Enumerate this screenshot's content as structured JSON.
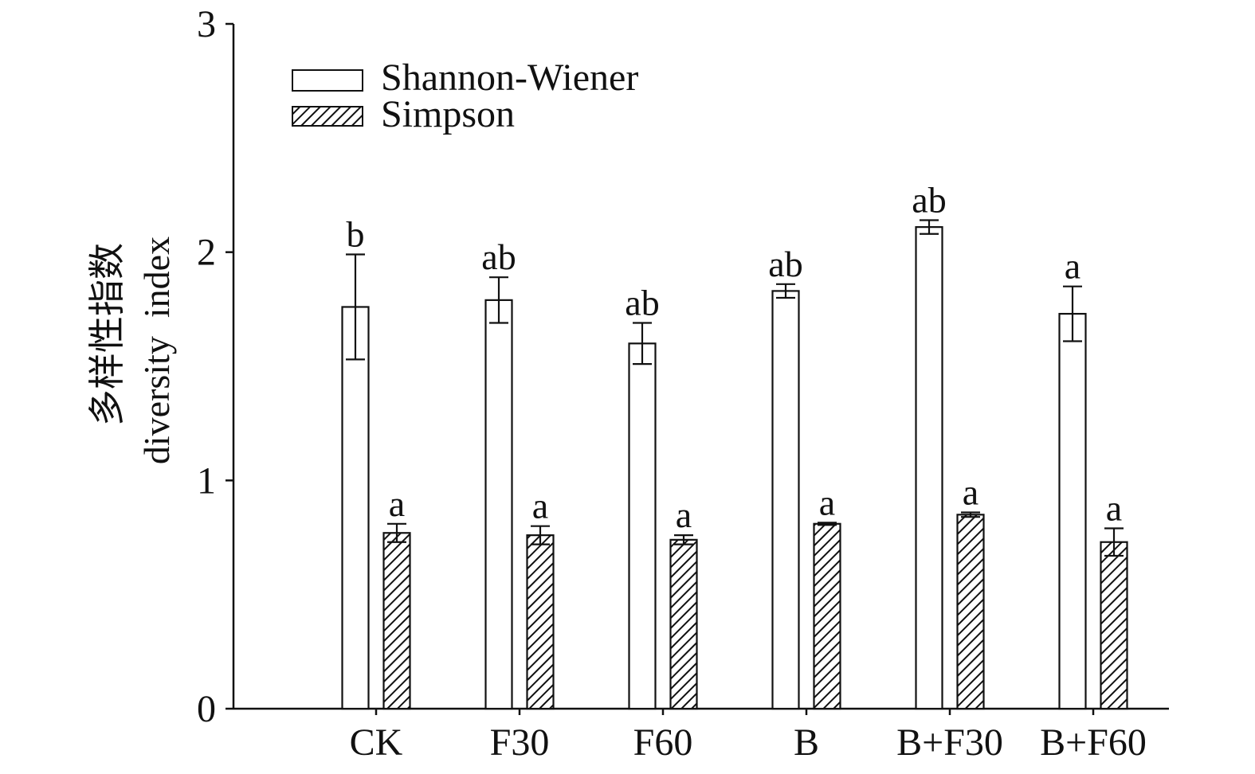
{
  "chart_data": {
    "type": "bar",
    "categories": [
      "CK",
      "F30",
      "F60",
      "B",
      "B+F30",
      "B+F60"
    ],
    "ylabel_cn": "多样性指数",
    "ylabel_en": "diversity  index",
    "ylim": [
      0,
      3
    ],
    "yticks": [
      0,
      1,
      2,
      3
    ],
    "grid": false,
    "legend_position": "top-left",
    "series": [
      {
        "name": "Shannon-Wiener",
        "pattern": "none",
        "values": [
          1.76,
          1.79,
          1.6,
          1.83,
          2.11,
          1.73
        ],
        "errors": [
          0.23,
          0.1,
          0.09,
          0.03,
          0.03,
          0.12
        ],
        "labels": [
          "b",
          "ab",
          "ab",
          "ab",
          "ab",
          "a"
        ]
      },
      {
        "name": "Simpson",
        "pattern": "hatch",
        "values": [
          0.77,
          0.76,
          0.74,
          0.81,
          0.85,
          0.73
        ],
        "errors": [
          0.04,
          0.04,
          0.02,
          0.005,
          0.01,
          0.06
        ],
        "labels": [
          "a",
          "a",
          "a",
          "a",
          "a",
          "a"
        ]
      }
    ]
  },
  "colors": {
    "axis": "#111111",
    "bar_fill": "#ffffff",
    "hatch": "#111111"
  }
}
